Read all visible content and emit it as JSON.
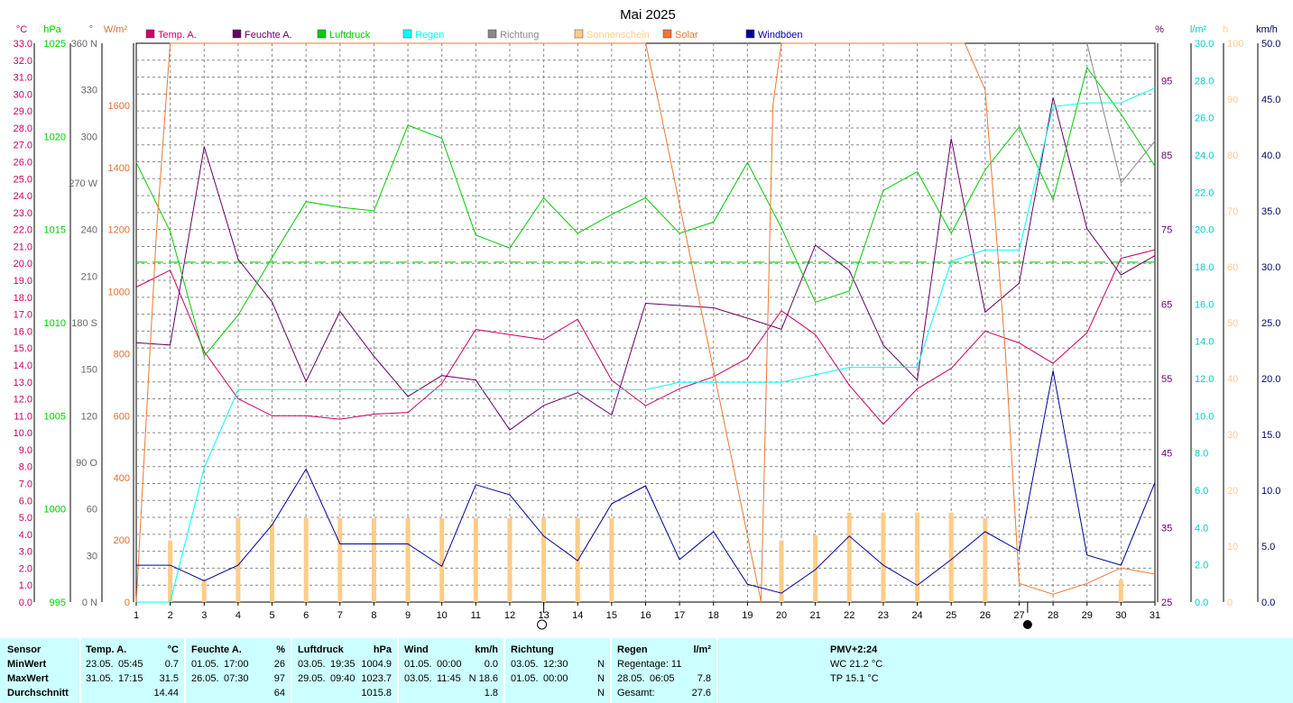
{
  "chart_data": {
    "type": "line",
    "title": "Mai 2025",
    "x": [
      1,
      2,
      3,
      4,
      5,
      6,
      7,
      8,
      9,
      10,
      11,
      12,
      13,
      14,
      15,
      16,
      17,
      18,
      19,
      20,
      21,
      22,
      23,
      24,
      25,
      26,
      27,
      28,
      29,
      30,
      31
    ],
    "axes": {
      "temp": {
        "unit": "°C",
        "range": [
          0,
          33
        ],
        "ticks": [
          "0.0",
          "1.0",
          "2.0",
          "3.0",
          "4.0",
          "5.0",
          "6.0",
          "7.0",
          "8.0",
          "9.0",
          "10.0",
          "11.0",
          "12.0",
          "13.0",
          "14.0",
          "15.0",
          "16.0",
          "17.0",
          "18.0",
          "19.0",
          "20.0",
          "21.0",
          "22.0",
          "23.0",
          "24.0",
          "25.0",
          "26.0",
          "27.0",
          "28.0",
          "29.0",
          "30.0",
          "31.0",
          "32.0",
          "33.0"
        ],
        "color": "#cc0066"
      },
      "pressure": {
        "unit": "hPa",
        "range": [
          995,
          1025
        ],
        "ticks": [
          "995",
          "1000",
          "1005",
          "1010",
          "1015",
          "1020",
          "1025"
        ],
        "color": "#00cc00"
      },
      "direction": {
        "unit": "°",
        "range": [
          0,
          360
        ],
        "ticks": [
          "0 N",
          "30",
          "60",
          "90 O",
          "120",
          "150",
          "180 S",
          "210",
          "240",
          "270 W",
          "300",
          "330",
          "360 N"
        ],
        "color": "#666666"
      },
      "solar": {
        "unit": "W/m²",
        "range": [
          0,
          1800
        ],
        "ticks": [
          "0",
          "200",
          "400",
          "600",
          "800",
          "1000",
          "1200",
          "1400",
          "1600"
        ],
        "color": "#e07030"
      },
      "humidity": {
        "unit": "%",
        "range": [
          25,
          100
        ],
        "ticks": [
          "25",
          "35",
          "45",
          "55",
          "65",
          "75",
          "85",
          "95"
        ],
        "color": "#660066"
      },
      "rain": {
        "unit": "l/m²",
        "range": [
          0,
          30
        ],
        "ticks": [
          "0.0",
          "2.0",
          "4.0",
          "6.0",
          "8.0",
          "10.0",
          "12.0",
          "14.0",
          "16.0",
          "18.0",
          "20.0",
          "22.0",
          "24.0",
          "26.0",
          "28.0",
          "30.0"
        ],
        "color": "#00cccc"
      },
      "sunshine": {
        "unit": "h",
        "range": [
          0,
          100
        ],
        "ticks": [
          "0",
          "10",
          "20",
          "30",
          "40",
          "50",
          "60",
          "70",
          "80",
          "90",
          "100"
        ],
        "color": "#ffcc88"
      },
      "gust": {
        "unit": "km/h",
        "range": [
          0,
          50
        ],
        "ticks": [
          "0.0",
          "5.0",
          "10.0",
          "15.0",
          "20.0",
          "25.0",
          "30.0",
          "35.0",
          "40.0",
          "45.0",
          "50.0"
        ],
        "color": "#000066"
      }
    },
    "legend": [
      "Temp. A.",
      "Feuchte A.",
      "Luftdruck",
      "Regen",
      "Richtung",
      "Sonnenschein",
      "Solar",
      "Windböen"
    ],
    "legend_colors": [
      "#cc0066",
      "#660066",
      "#00cc00",
      "#00ffff",
      "#888888",
      "#ffcc88",
      "#ee7733",
      "#000099"
    ],
    "series": [
      {
        "name": "Temp. A.",
        "axis": "temp",
        "color": "#cc0066",
        "values": [
          18.6,
          19.6,
          14.8,
          12.0,
          11.0,
          11.0,
          10.8,
          11.1,
          11.2,
          12.9,
          16.1,
          15.8,
          15.5,
          16.7,
          13.1,
          11.6,
          12.6,
          13.3,
          14.4,
          17.2,
          15.8,
          12.8,
          10.5,
          12.6,
          13.8,
          16.0,
          15.3,
          14.1,
          15.9,
          20.3,
          20.8
        ]
      },
      {
        "name": "Feuchte A.",
        "axis": "humidity",
        "color": "#660066",
        "values": [
          59.8,
          59.5,
          86.1,
          71.0,
          65.3,
          54.6,
          64.0,
          58.0,
          52.6,
          55.4,
          54.8,
          48.1,
          51.4,
          53.1,
          50.1,
          65.1,
          64.8,
          64.5,
          63.1,
          61.6,
          72.9,
          69.5,
          59.5,
          54.8,
          87.2,
          63.9,
          67.8,
          92.7,
          75.1,
          68.9,
          71.5
        ]
      },
      {
        "name": "Luftdruck",
        "axis": "pressure",
        "color": "#00cc00",
        "values": [
          1018.6,
          1014.9,
          1008.2,
          1010.4,
          1013.5,
          1016.5,
          1016.2,
          1016.0,
          1020.6,
          1019.9,
          1014.7,
          1014.0,
          1016.7,
          1014.8,
          1015.8,
          1016.7,
          1014.8,
          1015.4,
          1018.6,
          1015.1,
          1011.1,
          1011.7,
          1017.1,
          1018.1,
          1014.8,
          1018.2,
          1020.5,
          1016.6,
          1023.7,
          1021.2,
          1018.4
        ]
      },
      {
        "name": "Regen",
        "axis": "rain",
        "color": "#00ffff",
        "values": [
          0.0,
          0.0,
          7.2,
          11.4,
          11.4,
          11.4,
          11.4,
          11.4,
          11.4,
          11.4,
          11.4,
          11.4,
          11.4,
          11.4,
          11.4,
          11.4,
          11.8,
          11.8,
          11.8,
          11.8,
          12.2,
          12.6,
          12.6,
          12.6,
          18.3,
          18.9,
          18.9,
          26.6,
          26.8,
          26.8,
          27.6
        ]
      },
      {
        "name": "Richtung",
        "axis": "direction",
        "color": "#888888",
        "x": [
          29,
          30,
          31
        ],
        "values": [
          360,
          270,
          297
        ]
      },
      {
        "name": "Solar",
        "axis": "solar",
        "color": "#ee7733",
        "x": [
          1,
          1.6,
          2,
          2.6,
          15.6,
          16,
          16.4,
          19.4,
          19.75,
          20,
          25,
          25.4,
          26,
          26.6,
          27,
          28,
          29,
          30,
          31
        ],
        "values": [
          0,
          1200,
          1800,
          1800,
          1800,
          1800,
          1600,
          0,
          1600,
          1800,
          1800,
          1800,
          1650,
          800,
          60,
          25,
          60,
          110,
          90
        ]
      },
      {
        "name": "Sonnenschein",
        "axis": "sunshine",
        "type": "bar",
        "color": "#ffcc88",
        "values": [
          0,
          11,
          4,
          15,
          14,
          15,
          15,
          15,
          15,
          15,
          15,
          15,
          15,
          15,
          15,
          0,
          0,
          0,
          0,
          11,
          12,
          16,
          16,
          16,
          16,
          15,
          0,
          0,
          0,
          4,
          0
        ]
      },
      {
        "name": "Windböen",
        "axis": "gust",
        "color": "#000099",
        "values": [
          3.3,
          3.3,
          1.9,
          3.3,
          6.9,
          11.9,
          5.2,
          5.2,
          5.2,
          3.2,
          10.5,
          9.6,
          5.9,
          3.7,
          8.8,
          10.4,
          3.8,
          6.3,
          1.6,
          0.8,
          2.9,
          5.9,
          3.3,
          1.5,
          3.8,
          6.3,
          4.6,
          20.7,
          4.2,
          3.3,
          10.7
        ]
      }
    ],
    "reference_line": {
      "axis": "pressure",
      "value": 1013.25
    },
    "markers": [
      {
        "x": 13,
        "symbol": "O"
      },
      {
        "x": 27.25,
        "symbol": "●"
      }
    ],
    "grid": true
  },
  "table": {
    "labels": {
      "sensor": "Sensor",
      "min": "MinWert",
      "max": "MaxWert",
      "avg": "Durchschnitt"
    },
    "temp": {
      "header": "Temp. A.",
      "unit": "°C",
      "min_date": "23.05.",
      "min_time": "05:45",
      "min_val": "0.7",
      "max_date": "31.05.",
      "max_time": "17:15",
      "max_val": "31.5",
      "avg": "14.44"
    },
    "hum": {
      "header": "Feuchte A.",
      "unit": "%",
      "min_date": "01.05.",
      "min_time": "17:00",
      "min_val": "26",
      "max_date": "26.05.",
      "max_time": "07:30",
      "max_val": "97",
      "avg": "64"
    },
    "press": {
      "header": "Luftdruck",
      "unit": "hPa",
      "min_date": "03.05.",
      "min_time": "19:35",
      "min_val": "1004.9",
      "max_date": "29.05.",
      "max_time": "09:40",
      "max_val": "1023.7",
      "avg": "1015.8"
    },
    "wind": {
      "header": "Wind",
      "unit": "km/h",
      "min_date": "01.05.",
      "min_time": "00:00",
      "min_val": "0.0",
      "max_date": "03.05.",
      "max_time": "11:45",
      "max_val": "N 18.6",
      "avg": "1.8"
    },
    "dir": {
      "header": "Richtung",
      "min_date": "03.05.",
      "min_time": "12:30",
      "min_val": "N",
      "max_date": "01.05.",
      "max_time": "00:00",
      "max_val": "N",
      "avg": "N"
    },
    "rain": {
      "header": "Regen",
      "unit": "l/m²",
      "row1": "Regentage: 11",
      "row2_date": "28.05.",
      "row2_time": "06:05",
      "row2_val": "7.8",
      "row3_label": "Gesamt:",
      "row3_val": "27.6"
    },
    "pmv": {
      "header": "PMV+2:24",
      "wc": "WC 21.2 °C",
      "tp": "TP 15.1 °C"
    }
  }
}
